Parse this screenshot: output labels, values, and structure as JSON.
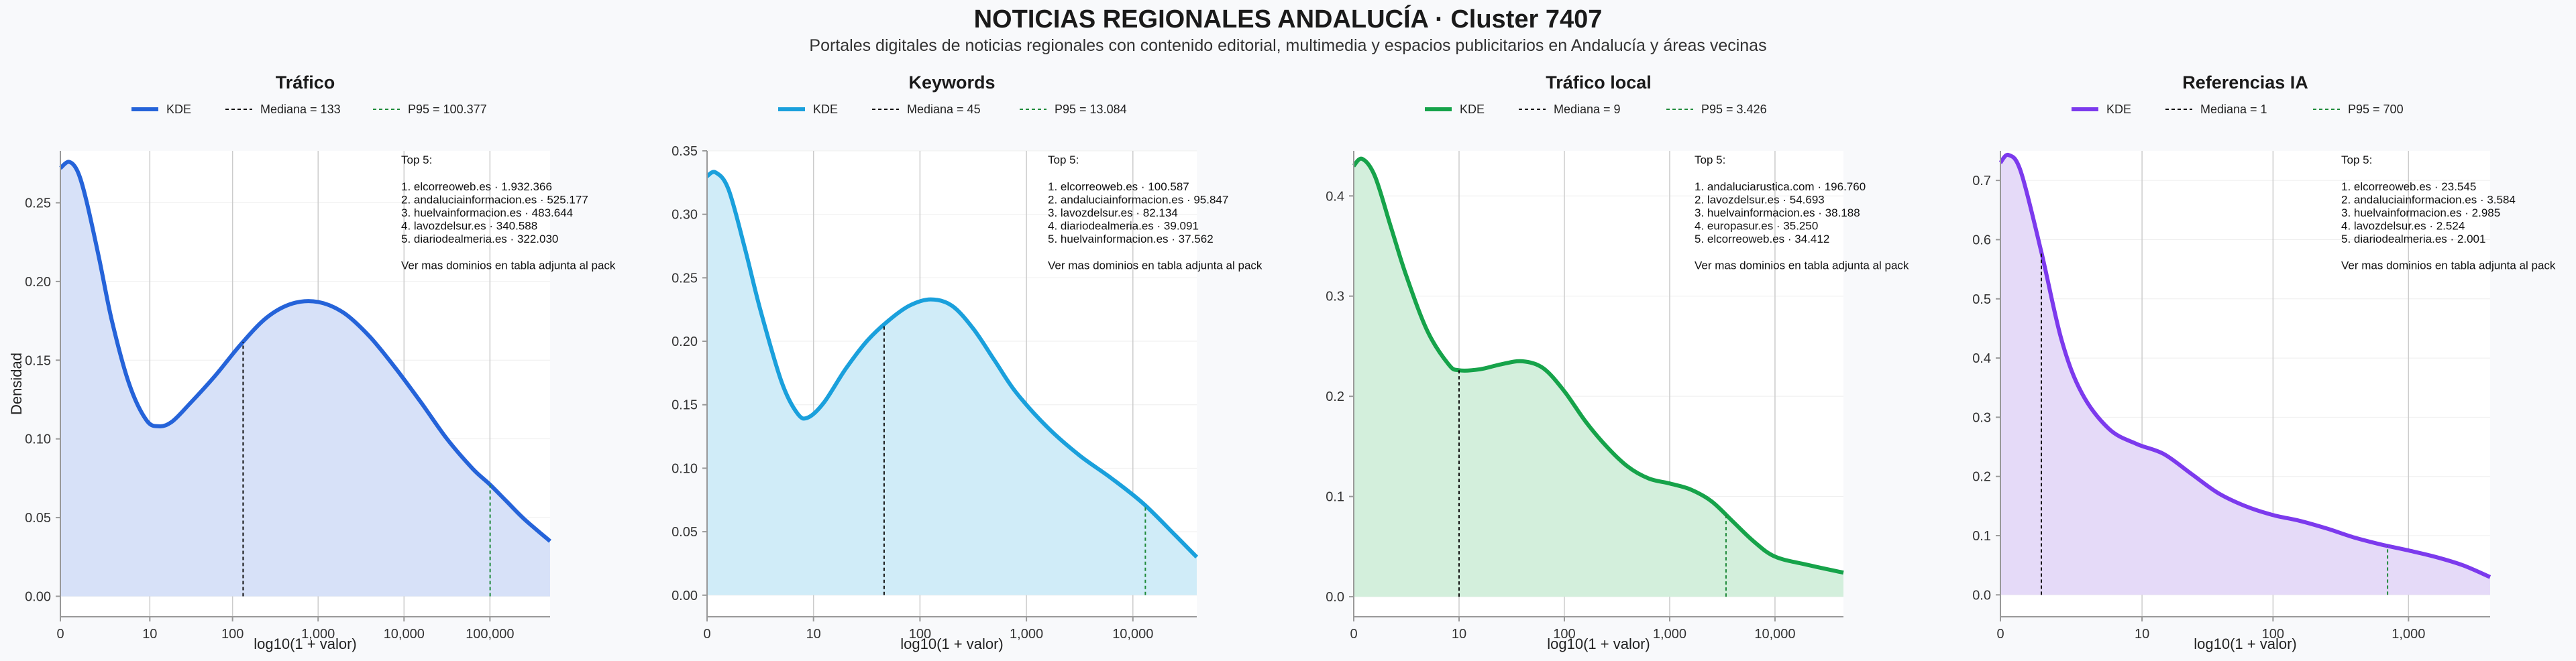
{
  "header": {
    "title": "NOTICIAS REGIONALES ANDALUCÍA · Cluster 7407",
    "subtitle": "Portales digitales de noticias regionales con contenido editorial, multimedia y espacios publicitarios en Andalucía y áreas vecinas"
  },
  "chart_data": [
    {
      "type": "area",
      "title": "Tráfico",
      "xlabel": "log10(1 + valor)",
      "ylabel": "Densidad",
      "color": "#2563d9",
      "fill": "#d7e1f8",
      "xlim": [
        0,
        5.7
      ],
      "ylim": [
        -0.013,
        0.283
      ],
      "xticks": [
        {
          "v": 0,
          "label": "0"
        },
        {
          "v": 1.041,
          "label": "10"
        },
        {
          "v": 2.004,
          "label": "100"
        },
        {
          "v": 3.0,
          "label": "1,000"
        },
        {
          "v": 4.0,
          "label": "10,000"
        },
        {
          "v": 5.0,
          "label": "100,000"
        }
      ],
      "yticks": [
        "0.00",
        "0.05",
        "0.10",
        "0.15",
        "0.20",
        "0.25"
      ],
      "ytick_values": [
        0,
        0.05,
        0.1,
        0.15,
        0.2,
        0.25
      ],
      "legend": {
        "kde": "KDE",
        "median": "Mediana = 133",
        "p95": "P95 = 100.377"
      },
      "median": 2.127,
      "p95": 5.002,
      "series": [
        {
          "name": "KDE",
          "x": [
            0,
            0.1,
            0.2,
            0.3,
            0.45,
            0.6,
            0.8,
            1.0,
            1.15,
            1.3,
            1.5,
            1.8,
            2.1,
            2.4,
            2.7,
            3.0,
            3.3,
            3.6,
            3.9,
            4.2,
            4.5,
            4.8,
            5.0,
            5.2,
            5.4,
            5.7
          ],
          "y": [
            0.272,
            0.276,
            0.27,
            0.252,
            0.215,
            0.175,
            0.135,
            0.112,
            0.108,
            0.111,
            0.122,
            0.14,
            0.16,
            0.177,
            0.186,
            0.187,
            0.18,
            0.165,
            0.145,
            0.123,
            0.1,
            0.081,
            0.071,
            0.06,
            0.049,
            0.035
          ]
        }
      ],
      "annotation": {
        "heading": "Top 5:",
        "items": [
          "1. elcorreoweb.es · 1.932.366",
          "2. andaluciainformacion.es · 525.177",
          "3. huelvainformacion.es · 483.644",
          "4. lavozdelsur.es · 340.588",
          "5. diariodealmeria.es · 322.030"
        ],
        "footer": "Ver mas dominios en tabla adjunta al pack"
      }
    },
    {
      "type": "area",
      "title": "Keywords",
      "xlabel": "log10(1 + valor)",
      "ylabel": "",
      "color": "#1aa0dc",
      "fill": "#d0ecf8",
      "xlim": [
        0,
        4.6
      ],
      "ylim": [
        -0.017,
        0.35
      ],
      "xticks": [
        {
          "v": 0,
          "label": "0"
        },
        {
          "v": 1.0,
          "label": "10"
        },
        {
          "v": 2.0,
          "label": "100"
        },
        {
          "v": 3.0,
          "label": "1,000"
        },
        {
          "v": 4.0,
          "label": "10,000"
        }
      ],
      "yticks": [
        "0.00",
        "0.05",
        "0.10",
        "0.15",
        "0.20",
        "0.25",
        "0.30",
        "0.35"
      ],
      "ytick_values": [
        0,
        0.05,
        0.1,
        0.15,
        0.2,
        0.25,
        0.3,
        0.35
      ],
      "legend": {
        "kde": "KDE",
        "median": "Mediana = 45",
        "p95": "P95 = 13.084"
      },
      "median": 1.663,
      "p95": 4.117,
      "series": [
        {
          "name": "KDE",
          "x": [
            0,
            0.08,
            0.2,
            0.35,
            0.5,
            0.7,
            0.85,
            0.95,
            1.1,
            1.3,
            1.5,
            1.7,
            1.9,
            2.1,
            2.3,
            2.5,
            2.7,
            2.9,
            3.2,
            3.5,
            3.8,
            4.1,
            4.4,
            4.6
          ],
          "y": [
            0.33,
            0.333,
            0.32,
            0.275,
            0.225,
            0.168,
            0.143,
            0.14,
            0.152,
            0.178,
            0.2,
            0.216,
            0.228,
            0.233,
            0.228,
            0.21,
            0.185,
            0.16,
            0.132,
            0.11,
            0.092,
            0.072,
            0.047,
            0.03
          ]
        }
      ],
      "annotation": {
        "heading": "Top 5:",
        "items": [
          "1. elcorreoweb.es · 100.587",
          "2. andaluciainformacion.es · 95.847",
          "3. lavozdelsur.es · 82.134",
          "4. diariodealmeria.es · 39.091",
          "5. huelvainformacion.es · 37.562"
        ],
        "footer": "Ver mas dominios en tabla adjunta al pack"
      }
    },
    {
      "type": "area",
      "title": "Tráfico local",
      "xlabel": "log10(1 + valor)",
      "ylabel": "",
      "color": "#16a34a",
      "fill": "#d3efdc",
      "xlim": [
        0,
        4.65
      ],
      "ylim": [
        -0.02,
        0.445
      ],
      "xticks": [
        {
          "v": 0,
          "label": "0"
        },
        {
          "v": 1.0,
          "label": "10"
        },
        {
          "v": 2.0,
          "label": "100"
        },
        {
          "v": 3.0,
          "label": "1,000"
        },
        {
          "v": 4.0,
          "label": "10,000"
        }
      ],
      "yticks": [
        "0.0",
        "0.1",
        "0.2",
        "0.3",
        "0.4"
      ],
      "ytick_values": [
        0,
        0.1,
        0.2,
        0.3,
        0.4
      ],
      "legend": {
        "kde": "KDE",
        "median": "Mediana = 9",
        "p95": "P95 = 3.426"
      },
      "median": 1.0,
      "p95": 3.535,
      "series": [
        {
          "name": "KDE",
          "x": [
            0,
            0.08,
            0.2,
            0.35,
            0.5,
            0.7,
            0.9,
            1.0,
            1.2,
            1.4,
            1.6,
            1.8,
            2.0,
            2.2,
            2.4,
            2.6,
            2.8,
            3.0,
            3.2,
            3.4,
            3.6,
            3.8,
            4.0,
            4.3,
            4.65
          ],
          "y": [
            0.43,
            0.437,
            0.42,
            0.37,
            0.32,
            0.265,
            0.232,
            0.226,
            0.227,
            0.232,
            0.235,
            0.228,
            0.205,
            0.175,
            0.15,
            0.13,
            0.118,
            0.113,
            0.107,
            0.095,
            0.075,
            0.055,
            0.04,
            0.032,
            0.024
          ]
        }
      ],
      "annotation": {
        "heading": "Top 5:",
        "items": [
          "1. andaluciarustica.com · 196.760",
          "2. lavozdelsur.es · 54.693",
          "3. huelvainformacion.es · 38.188",
          "4. europasur.es · 35.250",
          "5. elcorreoweb.es · 34.412"
        ],
        "footer": "Ver mas dominios en tabla adjunta al pack"
      }
    },
    {
      "type": "area",
      "title": "Referencias IA",
      "xlabel": "log10(1 + valor)",
      "ylabel": "",
      "color": "#7c3aed",
      "fill": "#e5daf8",
      "xlim": [
        0,
        3.6
      ],
      "ylim": [
        -0.037,
        0.75
      ],
      "xticks": [
        {
          "v": 0,
          "label": "0"
        },
        {
          "v": 1.041,
          "label": "10"
        },
        {
          "v": 2.004,
          "label": "100"
        },
        {
          "v": 3.0,
          "label": "1,000"
        }
      ],
      "yticks": [
        "0.0",
        "0.1",
        "0.2",
        "0.3",
        "0.4",
        "0.5",
        "0.6",
        "0.7"
      ],
      "ytick_values": [
        0,
        0.1,
        0.2,
        0.3,
        0.4,
        0.5,
        0.6,
        0.7
      ],
      "legend": {
        "kde": "KDE",
        "median": "Mediana = 1",
        "p95": "P95 = 700"
      },
      "median": 0.301,
      "p95": 2.846,
      "series": [
        {
          "name": "KDE",
          "x": [
            0,
            0.06,
            0.15,
            0.3,
            0.45,
            0.6,
            0.8,
            1.0,
            1.2,
            1.4,
            1.6,
            1.8,
            2.0,
            2.2,
            2.4,
            2.6,
            2.8,
            3.0,
            3.2,
            3.4,
            3.6
          ],
          "y": [
            0.73,
            0.743,
            0.715,
            0.58,
            0.43,
            0.34,
            0.28,
            0.255,
            0.238,
            0.205,
            0.172,
            0.15,
            0.135,
            0.125,
            0.112,
            0.097,
            0.085,
            0.075,
            0.064,
            0.05,
            0.03
          ]
        }
      ],
      "annotation": {
        "heading": "Top 5:",
        "items": [
          "1. elcorreoweb.es · 23.545",
          "2. andaluciainformacion.es · 3.584",
          "3. huelvainformacion.es · 2.985",
          "4. lavozdelsur.es · 2.524",
          "5. diariodealmeria.es · 2.001"
        ],
        "footer": "Ver mas dominios en tabla adjunta al pack"
      }
    }
  ]
}
